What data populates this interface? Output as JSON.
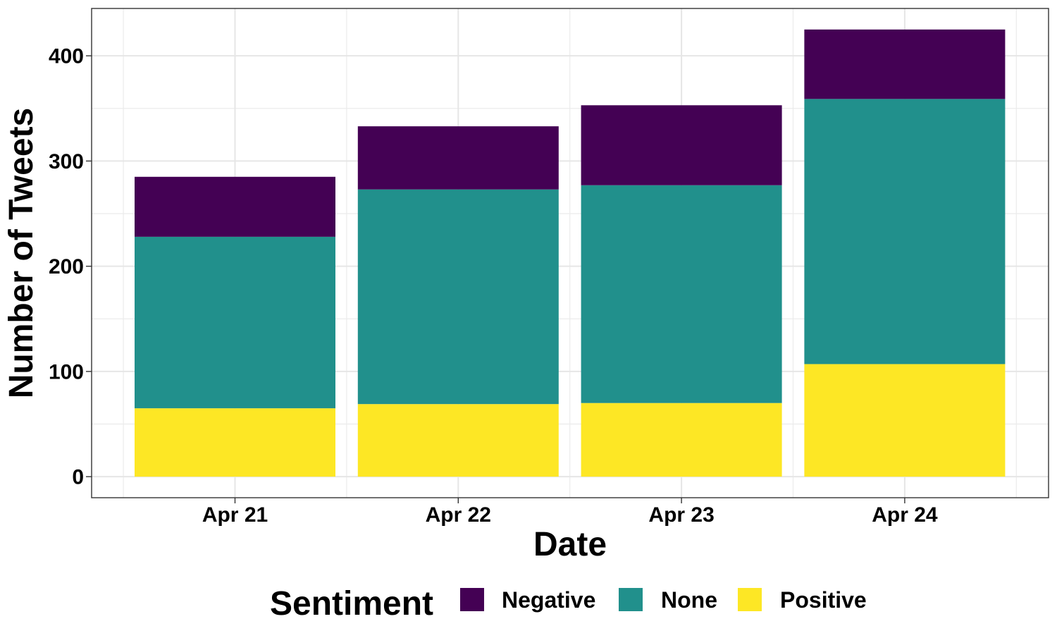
{
  "chart_data": {
    "type": "bar",
    "stacked": true,
    "title": "",
    "xlabel": "Date",
    "ylabel": "Number of Tweets",
    "categories": [
      "Apr 21",
      "Apr 22",
      "Apr 23",
      "Apr 24"
    ],
    "series": [
      {
        "name": "Positive",
        "color": "#FDE725",
        "values": [
          65,
          69,
          70,
          107
        ]
      },
      {
        "name": "None",
        "color": "#21908C",
        "values": [
          163,
          204,
          207,
          252
        ]
      },
      {
        "name": "Negative",
        "color": "#440154",
        "values": [
          57,
          60,
          76,
          66
        ]
      }
    ],
    "ylim": [
      -20,
      445
    ],
    "yticks": [
      0,
      100,
      200,
      300,
      400
    ],
    "grid": true,
    "legend": {
      "title": "Sentiment",
      "placement": "bottom",
      "order": [
        "Negative",
        "None",
        "Positive"
      ]
    }
  }
}
